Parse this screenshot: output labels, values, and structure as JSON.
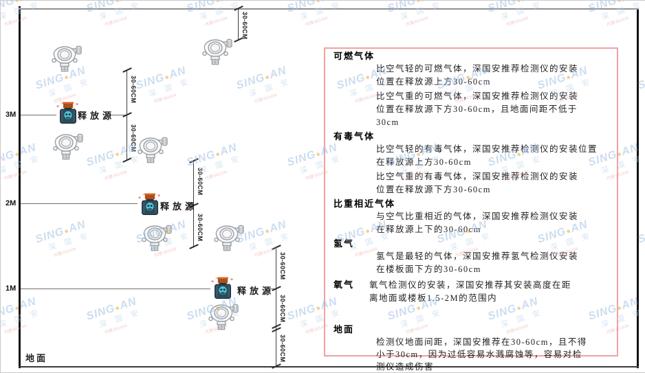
{
  "diagram": {
    "height_labels": {
      "m3": "3M",
      "m2": "2M",
      "m1": "1M"
    },
    "ground_label": "地面",
    "release_source_label": "释放源",
    "dim_label": "30-60CM"
  },
  "watermark": {
    "brand_left": "SING",
    "dot": "●",
    "brand_right": "AN",
    "cjk": "深 国 安",
    "sub": "代理:661434"
  },
  "panel": {
    "border_color": "#f2a0a0",
    "sections": [
      {
        "heading": "可燃气体",
        "paragraphs": [
          "比空气轻的可燃气体，深国安推荐检测仪的安装\n位置在释放源上方30-60cm",
          "比空气重的可燃气体，深国安推荐检测仪的安装\n位置在释放源下方30-60cm，且地面间距不低于\n30cm"
        ]
      },
      {
        "heading": "有毒气体",
        "paragraphs": [
          "比空气轻的有毒气体，深国安推荐检测仪的安装位置\n在释放源上方30-60cm",
          "比空气重的有毒气体，深国安推荐检测仪的安装\n位置在释放源下方30-60cm"
        ]
      },
      {
        "heading": "比重相近气体",
        "paragraphs": [
          "与空气比重相近的气体，深国安推荐检测仪安装\n在释放源上下的30-60cm"
        ]
      },
      {
        "heading": "氢气",
        "paragraphs": [
          "氢气是最轻的气体，深国安推荐氢气检测仪安装\n在楼板面下方的30-60cm"
        ]
      },
      {
        "heading": "氧气",
        "inline": true,
        "paragraphs": [
          "氧气检测仪的安装，深国安推荐其安装高度在距\n离地面或楼板1.5-2M的范围内"
        ]
      },
      {
        "heading": "地面",
        "paragraphs": [
          "检测仪地面间距，深国安推荐在30-60cm，且不得\n小于30cm，因为过低容易水溅腐蚀等，容易对检\n测仪造成伤害"
        ]
      }
    ]
  }
}
